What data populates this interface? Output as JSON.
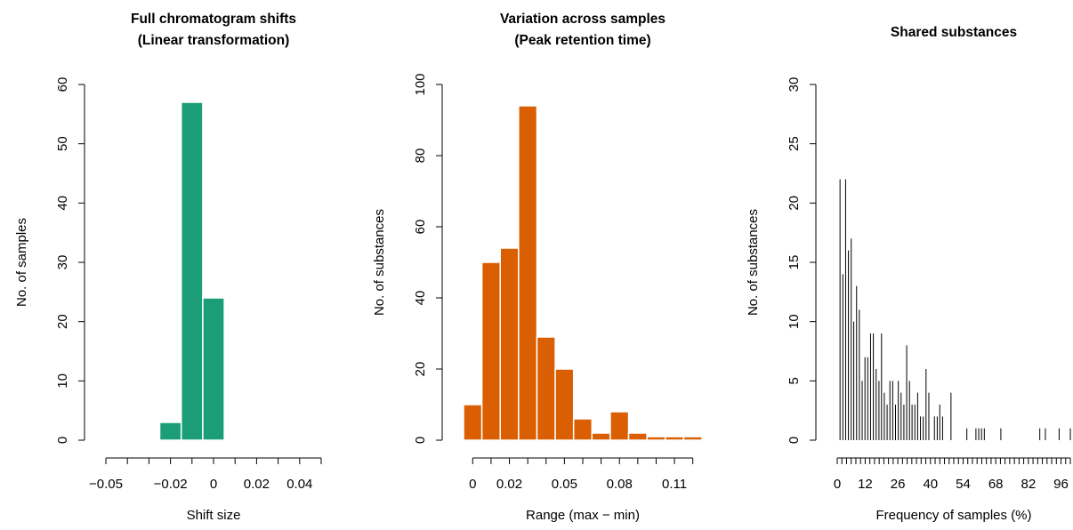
{
  "chart_data": [
    {
      "type": "histogram",
      "title": "Full chromatogram shifts",
      "subtitle": "(Linear transformation)",
      "xlabel": "Shift size",
      "ylabel": "No. of samples",
      "color": "#1b9e77",
      "bins": [
        -0.025,
        -0.015,
        -0.005,
        0.005
      ],
      "values": [
        3,
        57,
        24
      ],
      "xlim": [
        -0.05,
        0.05
      ],
      "ylim": [
        0,
        60
      ],
      "xticks": [
        {
          "value": -0.05,
          "label": "−0.05"
        },
        {
          "value": -0.02,
          "label": "−0.02"
        },
        0,
        0.02,
        0.04
      ],
      "xminor_ticks": [
        -0.04,
        -0.03,
        -0.01,
        0.01,
        0.03,
        0.05
      ],
      "yticks": [
        0,
        10,
        20,
        30,
        40,
        50,
        60
      ]
    },
    {
      "type": "histogram",
      "title": "Variation across samples",
      "subtitle": "(Peak retention time)",
      "xlabel": "Range (max − min)",
      "ylabel": "No. of substances",
      "color": "#d95f02",
      "bins": [
        -0.005,
        0.005,
        0.015,
        0.025,
        0.035,
        0.045,
        0.055,
        0.065,
        0.075,
        0.085,
        0.095,
        0.105,
        0.115,
        0.125
      ],
      "values": [
        10,
        50,
        54,
        94,
        29,
        20,
        6,
        2,
        8,
        2,
        1,
        1,
        1
      ],
      "xlim": [
        -0.005,
        0.125
      ],
      "ylim": [
        0,
        100
      ],
      "xticks": [
        0,
        0.02,
        0.05,
        0.08,
        0.11
      ],
      "xminor_ticks": [
        0.01,
        0.03,
        0.04,
        0.06,
        0.07,
        0.09,
        0.1,
        0.12
      ],
      "yticks": [
        0,
        20,
        40,
        60,
        80,
        100
      ]
    },
    {
      "type": "needle",
      "title": "Shared substances",
      "xlabel": "Frequency of samples (%)",
      "ylabel": "No. of substances",
      "color": "#000000",
      "x": [
        1.2,
        2.4,
        3.6,
        4.8,
        6.0,
        7.1,
        8.3,
        9.5,
        10.7,
        11.9,
        13.1,
        14.3,
        15.5,
        16.7,
        17.9,
        19.0,
        20.2,
        21.4,
        22.6,
        23.8,
        25.0,
        26.2,
        27.4,
        28.6,
        29.8,
        31.0,
        32.1,
        33.3,
        34.5,
        35.7,
        36.9,
        38.1,
        39.3,
        41.7,
        42.9,
        44.0,
        45.2,
        48.8,
        55.6,
        59.5,
        60.7,
        61.9,
        63.1,
        70.2,
        86.9,
        89.3,
        95.2,
        100
      ],
      "values": [
        22,
        14,
        22,
        16,
        17,
        10,
        13,
        11,
        5,
        7,
        7,
        9,
        9,
        6,
        5,
        9,
        4,
        3,
        5,
        5,
        3,
        5,
        4,
        3,
        8,
        5,
        3,
        3,
        4,
        2,
        2,
        6,
        4,
        2,
        2,
        3,
        2,
        4,
        1,
        1,
        1,
        1,
        1,
        1,
        1,
        1,
        1,
        1
      ],
      "xlim": [
        0,
        100
      ],
      "ylim": [
        0,
        30
      ],
      "xticks": [
        0,
        12,
        26,
        40,
        54,
        68,
        82,
        96
      ],
      "xminor_ticks": [
        2,
        4,
        6,
        8,
        10,
        14,
        16,
        18,
        20,
        22,
        24,
        28,
        30,
        32,
        34,
        36,
        38,
        42,
        44,
        46,
        48,
        50,
        52,
        56,
        58,
        60,
        62,
        64,
        66,
        70,
        72,
        74,
        76,
        78,
        80,
        84,
        86,
        88,
        90,
        92,
        94,
        98,
        100
      ],
      "yticks": [
        0,
        5,
        10,
        15,
        20,
        25,
        30
      ]
    }
  ]
}
